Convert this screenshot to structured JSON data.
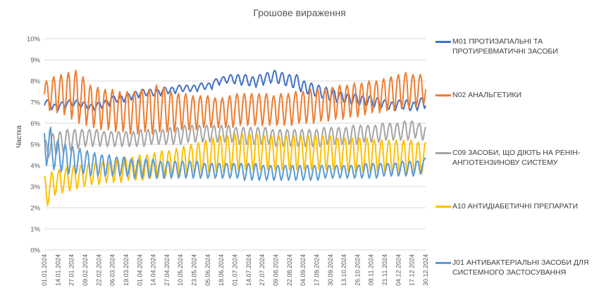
{
  "chart_data": {
    "type": "line",
    "title": "Грошове вираження",
    "ylabel": "Частка",
    "xlabel": "",
    "ylim": [
      0,
      0.1
    ],
    "y_ticks": [
      "0%",
      "1%",
      "2%",
      "3%",
      "4%",
      "5%",
      "6%",
      "7%",
      "8%",
      "9%",
      "10%"
    ],
    "x_tick_labels": [
      "01.01.2024",
      "14.01.2024",
      "27.01.2024",
      "09.02.2024",
      "22.02.2024",
      "06.03.2024",
      "19.03.2024",
      "01.04.2024",
      "14.04.2024",
      "27.04.2024",
      "10.05.2024",
      "23.05.2024",
      "05.06.2024",
      "18.06.2024",
      "01.07.2024",
      "14.07.2024",
      "27.07.2024",
      "09.08.2024",
      "22.08.2024",
      "04.09.2024",
      "17.09.2024",
      "30.09.2024",
      "13.10.2024",
      "26.10.2024",
      "08.11.2024",
      "21.11.2024",
      "04.12.2024",
      "17.12.2024",
      "30.12.2024"
    ],
    "x_range": [
      "2024-01-01",
      "2024-12-30"
    ],
    "grid": true,
    "legend_position": "right",
    "series": [
      {
        "name": "M01 ПРОТИЗАПАЛЬНІ ТА ПРОТИРЕВМАТИЧНІ ЗАСОБИ",
        "color": "#4472C4",
        "weekly_peaks": [
          0.071,
          0.069,
          0.07,
          0.071,
          0.071,
          0.07,
          0.069,
          0.07,
          0.071,
          0.073,
          0.073,
          0.074,
          0.075,
          0.076,
          0.076,
          0.076,
          0.077,
          0.077,
          0.078,
          0.078,
          0.078,
          0.079,
          0.079,
          0.081,
          0.082,
          0.083,
          0.083,
          0.083,
          0.082,
          0.083,
          0.084,
          0.085,
          0.084,
          0.083,
          0.083,
          0.08,
          0.079,
          0.078,
          0.077,
          0.076,
          0.075,
          0.074,
          0.074,
          0.073,
          0.073,
          0.072,
          0.071,
          0.07,
          0.071,
          0.071,
          0.07,
          0.072,
          0.071
        ],
        "weekly_lows": [
          0.068,
          0.066,
          0.067,
          0.068,
          0.068,
          0.067,
          0.066,
          0.067,
          0.068,
          0.07,
          0.07,
          0.071,
          0.072,
          0.073,
          0.073,
          0.073,
          0.074,
          0.074,
          0.075,
          0.075,
          0.075,
          0.076,
          0.076,
          0.078,
          0.079,
          0.079,
          0.078,
          0.078,
          0.077,
          0.078,
          0.079,
          0.079,
          0.078,
          0.077,
          0.076,
          0.074,
          0.073,
          0.072,
          0.071,
          0.07,
          0.07,
          0.069,
          0.069,
          0.068,
          0.068,
          0.067,
          0.067,
          0.066,
          0.067,
          0.066,
          0.066,
          0.067,
          0.068
        ]
      },
      {
        "name": "N02 АНАЛЬГЕТИКИ",
        "color": "#ED7D31",
        "weekly_peaks": [
          0.08,
          0.082,
          0.083,
          0.084,
          0.085,
          0.082,
          0.078,
          0.077,
          0.076,
          0.076,
          0.075,
          0.075,
          0.075,
          0.076,
          0.076,
          0.078,
          0.077,
          0.075,
          0.074,
          0.074,
          0.073,
          0.073,
          0.073,
          0.072,
          0.072,
          0.073,
          0.074,
          0.074,
          0.074,
          0.074,
          0.074,
          0.073,
          0.074,
          0.074,
          0.075,
          0.075,
          0.076,
          0.076,
          0.076,
          0.077,
          0.078,
          0.078,
          0.079,
          0.079,
          0.08,
          0.08,
          0.081,
          0.082,
          0.083,
          0.084,
          0.083,
          0.083,
          0.081
        ],
        "weekly_lows": [
          0.066,
          0.065,
          0.064,
          0.062,
          0.06,
          0.059,
          0.058,
          0.057,
          0.057,
          0.056,
          0.056,
          0.055,
          0.055,
          0.056,
          0.055,
          0.056,
          0.056,
          0.056,
          0.057,
          0.057,
          0.057,
          0.058,
          0.058,
          0.058,
          0.058,
          0.058,
          0.059,
          0.059,
          0.059,
          0.059,
          0.059,
          0.059,
          0.059,
          0.059,
          0.06,
          0.06,
          0.06,
          0.061,
          0.061,
          0.062,
          0.062,
          0.063,
          0.063,
          0.064,
          0.065,
          0.065,
          0.066,
          0.066,
          0.067,
          0.067,
          0.068,
          0.069,
          0.07
        ]
      },
      {
        "name": "C09 ЗАСОБИ, ЩО ДІЮТЬ НА РЕНІН-АНГІОТЕНЗИНОВУ СИСТЕМУ",
        "color": "#A5A5A5",
        "weekly_peaks": [
          0.052,
          0.055,
          0.056,
          0.057,
          0.057,
          0.057,
          0.057,
          0.057,
          0.056,
          0.056,
          0.056,
          0.056,
          0.056,
          0.057,
          0.057,
          0.057,
          0.057,
          0.058,
          0.058,
          0.059,
          0.059,
          0.059,
          0.059,
          0.059,
          0.059,
          0.059,
          0.058,
          0.058,
          0.058,
          0.058,
          0.058,
          0.057,
          0.057,
          0.057,
          0.057,
          0.057,
          0.057,
          0.057,
          0.058,
          0.058,
          0.058,
          0.058,
          0.059,
          0.059,
          0.059,
          0.059,
          0.06,
          0.06,
          0.06,
          0.061,
          0.061,
          0.06,
          0.059
        ],
        "weekly_lows": [
          0.044,
          0.045,
          0.046,
          0.047,
          0.048,
          0.049,
          0.049,
          0.049,
          0.049,
          0.049,
          0.049,
          0.049,
          0.049,
          0.049,
          0.05,
          0.05,
          0.05,
          0.05,
          0.05,
          0.051,
          0.051,
          0.051,
          0.051,
          0.051,
          0.051,
          0.051,
          0.05,
          0.05,
          0.05,
          0.05,
          0.05,
          0.049,
          0.049,
          0.049,
          0.049,
          0.049,
          0.049,
          0.049,
          0.05,
          0.05,
          0.05,
          0.05,
          0.05,
          0.051,
          0.051,
          0.051,
          0.052,
          0.052,
          0.052,
          0.052,
          0.053,
          0.052,
          0.052
        ]
      },
      {
        "name": "A10 АНТИДІАБЕТИЧНІ ПРЕПАРАТИ",
        "color": "#FFC000",
        "weekly_peaks": [
          0.035,
          0.037,
          0.038,
          0.039,
          0.04,
          0.04,
          0.041,
          0.042,
          0.042,
          0.043,
          0.043,
          0.044,
          0.044,
          0.045,
          0.045,
          0.046,
          0.047,
          0.047,
          0.048,
          0.049,
          0.05,
          0.051,
          0.052,
          0.053,
          0.054,
          0.054,
          0.055,
          0.055,
          0.055,
          0.055,
          0.054,
          0.054,
          0.054,
          0.054,
          0.054,
          0.054,
          0.054,
          0.054,
          0.054,
          0.054,
          0.053,
          0.053,
          0.053,
          0.053,
          0.053,
          0.052,
          0.052,
          0.052,
          0.052,
          0.052,
          0.052,
          0.051,
          0.051
        ],
        "weekly_lows": [
          0.021,
          0.026,
          0.027,
          0.028,
          0.029,
          0.03,
          0.031,
          0.031,
          0.032,
          0.032,
          0.032,
          0.033,
          0.033,
          0.033,
          0.034,
          0.034,
          0.034,
          0.035,
          0.035,
          0.036,
          0.036,
          0.036,
          0.037,
          0.037,
          0.037,
          0.038,
          0.038,
          0.038,
          0.038,
          0.038,
          0.038,
          0.038,
          0.038,
          0.038,
          0.038,
          0.038,
          0.038,
          0.038,
          0.038,
          0.038,
          0.038,
          0.037,
          0.037,
          0.037,
          0.037,
          0.037,
          0.037,
          0.036,
          0.036,
          0.036,
          0.036,
          0.036,
          0.036
        ]
      },
      {
        "name": "J01 АНТИБАКТЕРІАЛЬНІ ЗАСОБИ ДЛЯ СИСТЕМНОГО ЗАСТОСУВАННЯ",
        "color": "#5B9BD5",
        "weekly_peaks": [
          0.058,
          0.052,
          0.05,
          0.049,
          0.048,
          0.047,
          0.046,
          0.045,
          0.045,
          0.044,
          0.044,
          0.043,
          0.043,
          0.043,
          0.043,
          0.042,
          0.042,
          0.042,
          0.042,
          0.042,
          0.042,
          0.041,
          0.041,
          0.041,
          0.041,
          0.041,
          0.041,
          0.041,
          0.041,
          0.04,
          0.04,
          0.04,
          0.04,
          0.04,
          0.04,
          0.04,
          0.04,
          0.04,
          0.04,
          0.04,
          0.04,
          0.04,
          0.04,
          0.041,
          0.041,
          0.041,
          0.041,
          0.041,
          0.042,
          0.042,
          0.042,
          0.043,
          0.045
        ],
        "weekly_lows": [
          0.04,
          0.038,
          0.037,
          0.036,
          0.036,
          0.036,
          0.035,
          0.035,
          0.035,
          0.035,
          0.035,
          0.035,
          0.034,
          0.034,
          0.034,
          0.034,
          0.034,
          0.034,
          0.034,
          0.034,
          0.034,
          0.034,
          0.034,
          0.034,
          0.034,
          0.034,
          0.034,
          0.033,
          0.033,
          0.033,
          0.033,
          0.033,
          0.033,
          0.033,
          0.033,
          0.033,
          0.033,
          0.033,
          0.034,
          0.034,
          0.034,
          0.034,
          0.034,
          0.034,
          0.034,
          0.034,
          0.035,
          0.035,
          0.035,
          0.035,
          0.035,
          0.036,
          0.037
        ]
      }
    ]
  }
}
